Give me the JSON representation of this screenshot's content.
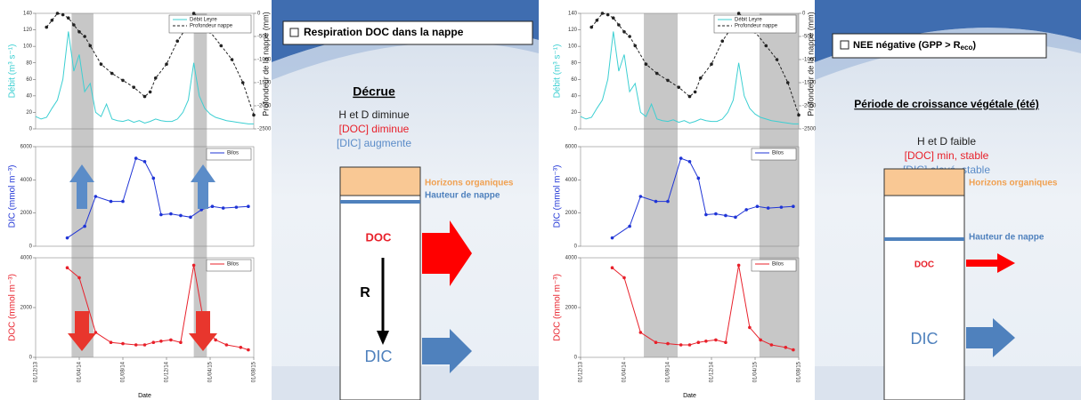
{
  "chart_data": [
    {
      "type": "line",
      "ylabel": "Débit (m³ s⁻¹)",
      "y2label": "Profondeur de la nappe (mm)",
      "xlim": [
        0,
        20
      ],
      "ylim": [
        0,
        140
      ],
      "yticks": [
        0,
        20,
        40,
        60,
        80,
        100,
        120,
        140
      ],
      "y2lim": [
        -2500,
        0
      ],
      "y2ticks": [
        0,
        -500,
        -1000,
        -1500,
        -2000,
        -2500
      ],
      "legend": "top-right",
      "series": [
        {
          "name": "Débit Leyre",
          "color": "#3ccfd2",
          "axis": "y",
          "x": [
            0,
            0.5,
            1,
            1.5,
            2,
            2.5,
            3,
            3.5,
            4,
            4.5,
            5,
            5.5,
            6,
            6.5,
            7,
            7.5,
            8,
            8.5,
            9,
            9.5,
            10,
            10.5,
            11,
            11.5,
            12,
            12.5,
            13,
            13.5,
            14,
            14.5,
            15,
            15.5,
            16,
            16.5,
            17,
            17.5,
            18,
            18.5,
            19,
            19.5,
            20
          ],
          "values": [
            15,
            12,
            14,
            25,
            35,
            60,
            118,
            70,
            90,
            45,
            55,
            20,
            15,
            30,
            12,
            10,
            9,
            11,
            8,
            10,
            7,
            9,
            12,
            10,
            9,
            9,
            12,
            20,
            35,
            80,
            40,
            25,
            18,
            14,
            12,
            10,
            9,
            8,
            7,
            6,
            6
          ]
        },
        {
          "name": "Profondeur nappe",
          "color": "#222222",
          "axis": "y2",
          "dash": true,
          "marker": true,
          "x": [
            1,
            1.5,
            2,
            2.5,
            3,
            3.5,
            4,
            4.5,
            5,
            6,
            7,
            8,
            9,
            10,
            10.5,
            11,
            12,
            13,
            14,
            14.5,
            15,
            16,
            17,
            18,
            19,
            20
          ],
          "values": [
            -300,
            -150,
            0,
            -30,
            -100,
            -250,
            -400,
            -500,
            -700,
            -1100,
            -1300,
            -1450,
            -1600,
            -1800,
            -1700,
            -1400,
            -1100,
            -600,
            -250,
            0,
            -100,
            -400,
            -700,
            -1000,
            -1500,
            -2200
          ]
        }
      ]
    },
    {
      "type": "line",
      "ylabel": "DIC (mmol m⁻³)",
      "xlim": [
        0,
        20
      ],
      "ylim": [
        0,
        6000
      ],
      "yticks": [
        0,
        2000,
        4000,
        6000
      ],
      "legend": "top-right",
      "series": [
        {
          "name": "Bilos",
          "color": "#1f34d6",
          "marker": true,
          "x": [
            2.9,
            4.5,
            5.5,
            6.9,
            8.0,
            9.2,
            10.0,
            10.8,
            11.5,
            12.4,
            13.3,
            14.2,
            15.2,
            16.2,
            17.2,
            18.4,
            19.5
          ],
          "values": [
            500,
            1200,
            3000,
            2700,
            2700,
            5300,
            5100,
            4100,
            1900,
            1950,
            1850,
            1750,
            2200,
            2400,
            2300,
            2350,
            2400
          ]
        }
      ]
    },
    {
      "type": "line",
      "ylabel": "DOC (mmol m⁻³)",
      "xlabel": "Date",
      "xlim": [
        0,
        20
      ],
      "ylim": [
        0,
        4000
      ],
      "yticks": [
        0,
        2000,
        4000
      ],
      "legend": "top-right",
      "xticks": [
        {
          "value": 0,
          "label": "01/12/13"
        },
        {
          "value": 4,
          "label": "01/04/14"
        },
        {
          "value": 8,
          "label": "01/08/14"
        },
        {
          "value": 12,
          "label": "01/12/14"
        },
        {
          "value": 16,
          "label": "01/04/15"
        },
        {
          "value": 20,
          "label": "01/08/15"
        }
      ],
      "series": [
        {
          "name": "Bilos",
          "color": "#e8202a",
          "marker": true,
          "x": [
            2.9,
            4.0,
            5.5,
            6.9,
            8.0,
            9.2,
            10.0,
            10.8,
            11.5,
            12.4,
            13.3,
            14.5,
            15.5,
            16.5,
            17.5,
            18.8,
            19.5
          ],
          "values": [
            3600,
            3200,
            1000,
            600,
            550,
            500,
            500,
            600,
            650,
            700,
            600,
            3700,
            1200,
            700,
            500,
            400,
            300
          ]
        }
      ]
    }
  ],
  "slides": [
    {
      "highlights": [
        [
          3.3,
          5.3
        ],
        [
          14.5,
          15.7
        ]
      ],
      "panel": {
        "title": "Respiration DOC dans la nappe",
        "heading": "Décrue",
        "lines": [
          "H et D diminue",
          "[DOC] diminue",
          "[DIC] augmente"
        ],
        "box_labels": [
          "Horizons organiques",
          "Hauteur de nappe"
        ],
        "doc": "DOC",
        "r": "R",
        "dic": "DIC"
      }
    },
    {
      "highlights": [
        [
          5.8,
          8.9
        ],
        [
          16.4,
          20
        ]
      ],
      "panel": {
        "title": "NEE négative (GPP > R",
        "title_sub": "eco",
        "title_end": ")",
        "heading": "Période de croissance végétale (été)",
        "lines": [
          "H et D faible",
          "[DOC] min, stable",
          "[DIC] elevé, stable"
        ],
        "box_labels": [
          "Horizons organiques",
          "Hauteur de nappe"
        ],
        "doc": "DOC",
        "dic": "DIC"
      }
    }
  ]
}
